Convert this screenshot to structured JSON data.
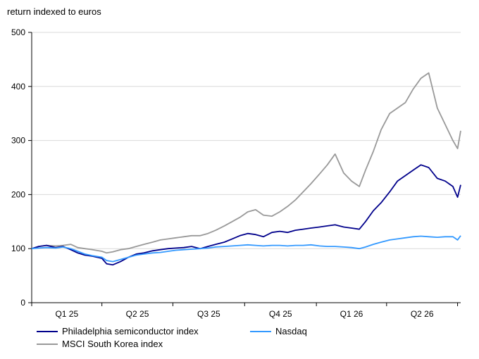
{
  "chart_data": {
    "type": "line",
    "title": "return indexed to euros",
    "xlabel": "",
    "ylabel": "",
    "ylim": [
      0,
      500
    ],
    "yticks": [
      "0",
      "100",
      "200",
      "300",
      "400",
      "500"
    ],
    "xticks": [
      "Q1 25",
      "Q2 25",
      "Q3 25",
      "Q4 25",
      "Q1 26",
      "Q2 26"
    ],
    "grid": "horizontal",
    "legend_position": "bottom",
    "x": [
      "2025-01-01",
      "2025-01-10",
      "2025-01-20",
      "2025-02-01",
      "2025-02-10",
      "2025-02-20",
      "2025-03-01",
      "2025-03-10",
      "2025-03-20",
      "2025-04-01",
      "2025-04-07",
      "2025-04-15",
      "2025-04-25",
      "2025-05-05",
      "2025-05-15",
      "2025-05-25",
      "2025-06-05",
      "2025-06-15",
      "2025-06-25",
      "2025-07-05",
      "2025-07-15",
      "2025-07-25",
      "2025-08-05",
      "2025-08-15",
      "2025-08-25",
      "2025-09-05",
      "2025-09-15",
      "2025-09-25",
      "2025-10-05",
      "2025-10-15",
      "2025-10-25",
      "2025-11-05",
      "2025-11-15",
      "2025-11-25",
      "2025-12-05",
      "2025-12-15",
      "2025-12-25",
      "2026-01-05",
      "2026-01-15",
      "2026-01-25",
      "2026-02-05",
      "2026-02-15",
      "2026-02-25",
      "2026-03-05",
      "2026-03-15",
      "2026-03-25",
      "2026-04-05",
      "2026-04-15",
      "2026-04-25",
      "2026-05-05",
      "2026-05-15",
      "2026-05-25",
      "2026-06-05",
      "2026-06-15",
      "2026-06-25",
      "2026-07-01",
      "2026-07-05"
    ],
    "series": [
      {
        "name": "Philadelphia semiconductor index",
        "color": "#00008b",
        "values": [
          100,
          104,
          106,
          102,
          104,
          98,
          92,
          88,
          86,
          82,
          72,
          70,
          76,
          84,
          90,
          92,
          96,
          98,
          100,
          101,
          102,
          104,
          100,
          104,
          108,
          112,
          118,
          124,
          128,
          126,
          122,
          130,
          132,
          130,
          134,
          136,
          138,
          140,
          142,
          144,
          140,
          138,
          136,
          150,
          170,
          185,
          205,
          225,
          235,
          245,
          255,
          250,
          230,
          225,
          215,
          195,
          218
        ]
      },
      {
        "name": "Nasdaq",
        "color": "#3399ff",
        "values": [
          100,
          101,
          102,
          101,
          103,
          100,
          95,
          90,
          87,
          84,
          78,
          76,
          80,
          84,
          88,
          90,
          92,
          93,
          95,
          97,
          98,
          99,
          100,
          101,
          103,
          104,
          105,
          106,
          107,
          106,
          105,
          106,
          106,
          105,
          106,
          106,
          107,
          105,
          104,
          104,
          103,
          102,
          100,
          103,
          108,
          112,
          116,
          118,
          120,
          122,
          123,
          122,
          121,
          122,
          122,
          116,
          124
        ]
      },
      {
        "name": "MSCI South Korea index",
        "color": "#999999",
        "values": [
          100,
          104,
          106,
          105,
          106,
          108,
          102,
          100,
          98,
          95,
          92,
          94,
          98,
          100,
          104,
          108,
          112,
          116,
          118,
          120,
          122,
          124,
          124,
          128,
          134,
          142,
          150,
          158,
          168,
          172,
          162,
          160,
          168,
          178,
          190,
          205,
          220,
          238,
          255,
          275,
          240,
          225,
          215,
          245,
          280,
          320,
          350,
          360,
          370,
          395,
          415,
          425,
          360,
          330,
          300,
          285,
          318
        ]
      }
    ]
  }
}
